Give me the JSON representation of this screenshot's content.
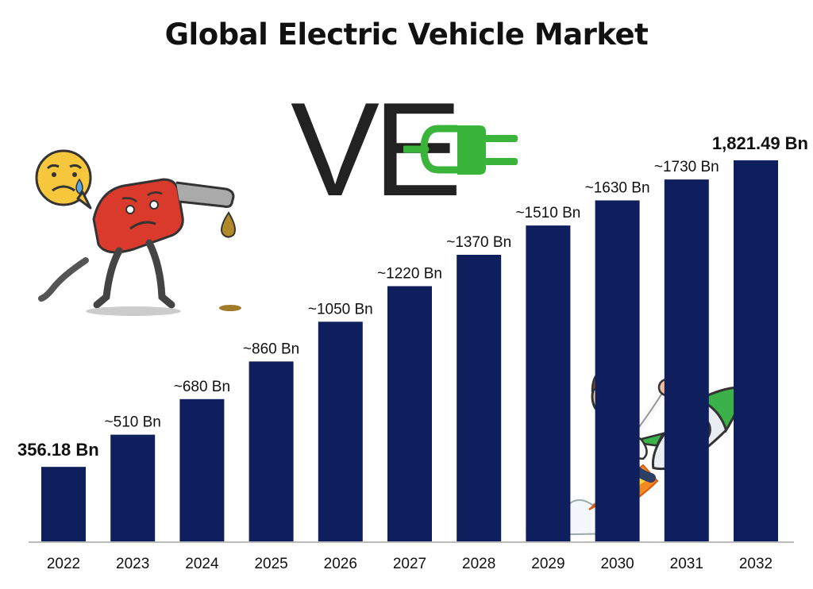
{
  "chart_data": {
    "type": "bar",
    "title": "Global Electric Vehicle Market",
    "categories": [
      "2022",
      "2023",
      "2024",
      "2025",
      "2026",
      "2027",
      "2028",
      "2029",
      "2030",
      "2031",
      "2032"
    ],
    "values": [
      356.18,
      510,
      680,
      860,
      1050,
      1220,
      1370,
      1510,
      1630,
      1730,
      1821.49
    ],
    "data_labels": [
      "356.18 Bn",
      "~510 Bn",
      "~680 Bn",
      "~860 Bn",
      "~1050 Bn",
      "~1220 Bn",
      "~1370 Bn",
      "~1510 Bn",
      "~1630 Bn",
      "~1730 Bn",
      "1,821.49 Bn"
    ],
    "bold_labels": [
      true,
      false,
      false,
      false,
      false,
      false,
      false,
      false,
      false,
      false,
      true
    ],
    "xlabel": "",
    "ylabel": "",
    "ylim": [
      0,
      2000
    ],
    "grid": false,
    "bar_color": "#0f1e5c"
  },
  "logo": {
    "text": "VE",
    "plug_color": "#3ab53a"
  },
  "illustrations": {
    "left_icon": "sad-fuel-pump-icon",
    "right_icon": "man-riding-rocket-icon"
  },
  "colors": {
    "axis": "#bbbbbb",
    "label": "#111111"
  }
}
